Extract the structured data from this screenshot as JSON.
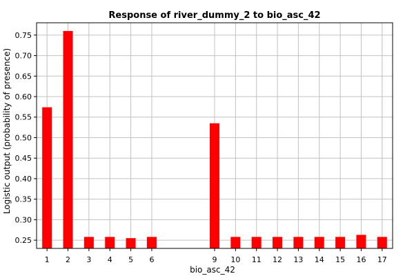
{
  "chart_data": {
    "type": "bar",
    "title": "Response of river_dummy_2 to bio_asc_42",
    "xlabel": "bio_asc_42",
    "ylabel": "Logistic output (probability of presence)",
    "categories": [
      "1",
      "2",
      "3",
      "4",
      "5",
      "6",
      "9",
      "10",
      "11",
      "12",
      "13",
      "14",
      "15",
      "16",
      "17"
    ],
    "values": [
      0.574,
      0.76,
      0.258,
      0.258,
      0.255,
      0.258,
      0.535,
      0.258,
      0.258,
      0.258,
      0.258,
      0.258,
      0.258,
      0.263,
      0.258
    ],
    "ylim": [
      0.23,
      0.78
    ],
    "xlim": [
      0.5,
      17.5
    ],
    "yticks": [
      "0.25",
      "0.30",
      "0.35",
      "0.40",
      "0.45",
      "0.50",
      "0.55",
      "0.60",
      "0.65",
      "0.70",
      "0.75"
    ],
    "grid": true,
    "bar_color": "#ff0000",
    "grid_color": "#c0c0c0"
  }
}
